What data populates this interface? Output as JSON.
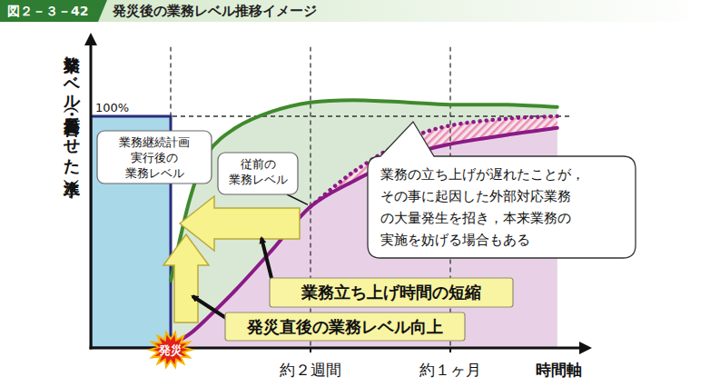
{
  "chart_data": {
    "type": "line",
    "figure_number": "図２－３－42",
    "title": "発災後の業務レベル推移イメージ",
    "y_label": "業務レベル（質・量合わせた水準）",
    "x_label": "時間軸",
    "xlim": [
      -8,
      40
    ],
    "ylim": [
      0,
      130
    ],
    "xticks": [
      {
        "value": 0,
        "label": "発災"
      },
      {
        "value": 14,
        "label": "約２週間"
      },
      {
        "value": 28,
        "label": "約１ヶ月"
      }
    ],
    "yticks": [
      {
        "value": 100,
        "label": "100%"
      }
    ],
    "grid": true,
    "series": [
      {
        "type": "area",
        "color": "#a9d8e9",
        "x": [
          -8,
          0
        ],
        "values": [
          100,
          100
        ]
      },
      {
        "type": "line",
        "color": "#3f8a2c",
        "line_style": "solid",
        "label": [
          "業務継続計画",
          "実行後の",
          "業務レベル"
        ],
        "x": [
          0,
          1.9,
          3.7,
          6.5,
          10.1,
          14,
          18.3,
          23.7,
          28,
          33.7,
          38.7
        ],
        "values": [
          29,
          64,
          84,
          95,
          102,
          106,
          107,
          106,
          105,
          105,
          104
        ]
      },
      {
        "type": "line",
        "color": "#8b1a85",
        "line_style": "solid",
        "label": [
          "従前の",
          "業務レベル"
        ],
        "x": [
          0,
          1.9,
          3.7,
          6.5,
          10.1,
          14,
          18.3,
          23.7,
          28,
          33.7,
          38.7
        ],
        "values": [
          1,
          6,
          13,
          25,
          42,
          61,
          72,
          83,
          88,
          92,
          95
        ]
      },
      {
        "type": "line",
        "color": "#8b1a85",
        "line_style": "dotted",
        "x": [
          0,
          1.9,
          3.7,
          6.5,
          10.1,
          14,
          18.3,
          23.7,
          28,
          33.7,
          38.7
        ],
        "values": [
          null,
          null,
          null,
          null,
          null,
          61,
          76,
          90,
          96,
          99,
          100
        ]
      }
    ],
    "annotations": [
      {
        "text": "業務立ち上げ時間の短縮"
      },
      {
        "text": "発災直後の業務レベル向上"
      },
      {
        "lines": [
          "業務の立ち上げが遅れたことが，",
          "その事に起因した外部対応業務",
          "の大量発生を招き，本来業務の",
          "実施を妨げる場合もある"
        ]
      }
    ]
  }
}
